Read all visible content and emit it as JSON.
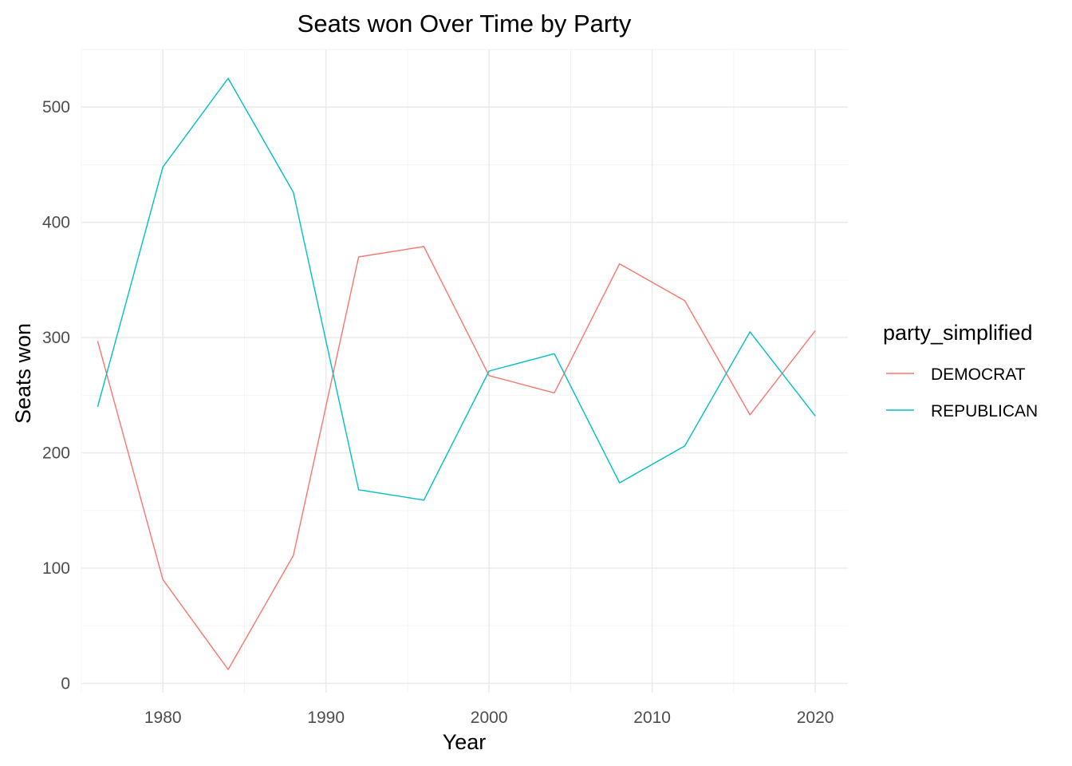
{
  "chart_data": {
    "type": "line",
    "title": "Seats won Over Time by Party",
    "xlabel": "Year",
    "ylabel": "Seats won",
    "xlim": [
      1975,
      2022
    ],
    "ylim": [
      -8,
      550
    ],
    "x_ticks": [
      1980,
      1990,
      2000,
      2010,
      2020
    ],
    "y_ticks": [
      0,
      100,
      200,
      300,
      400,
      500
    ],
    "grid": true,
    "legend": {
      "title": "party_simplified",
      "position": "right"
    },
    "x": [
      1976,
      1980,
      1984,
      1988,
      1992,
      1996,
      2000,
      2004,
      2008,
      2012,
      2016,
      2020
    ],
    "series": [
      {
        "name": "DEMOCRAT",
        "color": "#F8766D",
        "values": [
          297,
          90,
          12,
          111,
          370,
          379,
          267,
          252,
          364,
          332,
          233,
          306
        ]
      },
      {
        "name": "REPUBLICAN",
        "color": "#00BFC4",
        "values": [
          240,
          448,
          525,
          426,
          168,
          159,
          271,
          286,
          174,
          206,
          305,
          232
        ]
      }
    ]
  }
}
